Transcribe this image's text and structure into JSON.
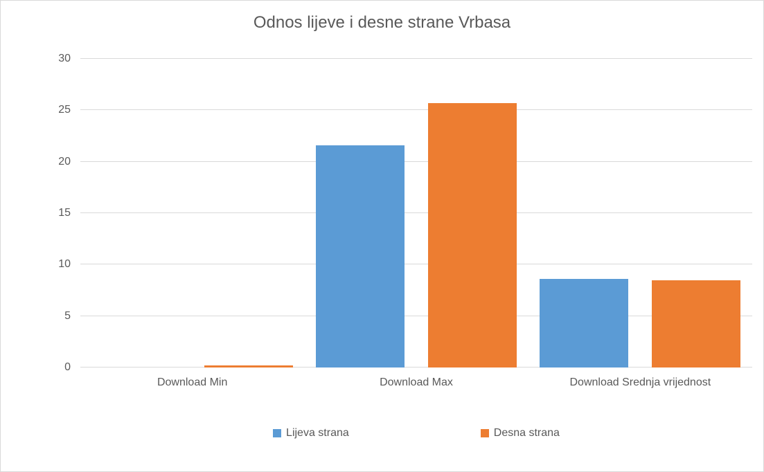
{
  "chart_data": {
    "type": "bar",
    "title": "Odnos lijeve i desne strane Vrbasa",
    "categories": [
      "Download Min",
      "Download Max",
      "Download Srednja vrijednost"
    ],
    "series": [
      {
        "name": "Lijeva strana",
        "color": "#5B9BD5",
        "values": [
          0,
          21.6,
          8.6
        ]
      },
      {
        "name": "Desna strana",
        "color": "#ED7D31",
        "values": [
          0.2,
          25.7,
          8.45
        ]
      }
    ],
    "ylim": [
      0,
      30
    ],
    "yticks": [
      0,
      5,
      10,
      15,
      20,
      25,
      30
    ],
    "xlabel": "",
    "ylabel": "",
    "grid": "horizontal",
    "legend_position": "bottom"
  },
  "colors": {
    "gridline": "#D9D9D9",
    "axis_text": "#595959",
    "title_text": "#595959",
    "background": "#FFFFFF",
    "border": "#D9D9D9"
  }
}
